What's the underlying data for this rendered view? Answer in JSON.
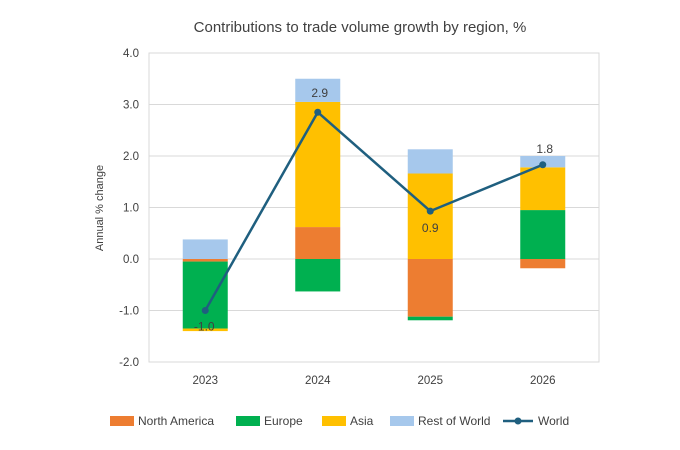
{
  "chart_data": {
    "type": "stacked-bar-with-line",
    "title": "Contributions to trade volume growth by region, %",
    "ylabel": "Annual % change",
    "xlabel": "",
    "ylim": [
      -2.0,
      4.0
    ],
    "ytick_step": 1.0,
    "categories": [
      "2023",
      "2024",
      "2025",
      "2026"
    ],
    "series": [
      {
        "name": "North America",
        "color": "#ED7D31",
        "values": [
          -0.05,
          0.62,
          -1.12,
          -0.18
        ]
      },
      {
        "name": "Europe",
        "color": "#00B050",
        "values": [
          -1.3,
          -0.63,
          -0.07,
          0.95
        ]
      },
      {
        "name": "Asia",
        "color": "#FFC000",
        "values": [
          -0.05,
          2.43,
          1.66,
          0.83
        ]
      },
      {
        "name": "Rest of World",
        "color": "#A6C8EC",
        "values": [
          0.38,
          0.45,
          0.47,
          0.22
        ]
      }
    ],
    "line": {
      "name": "World",
      "color": "#1F5F7F",
      "values": [
        -1.0,
        2.85,
        0.93,
        1.83
      ]
    },
    "data_labels": [
      "-1.0",
      "2.9",
      "0.9",
      "1.8"
    ],
    "legend_position": "bottom"
  }
}
